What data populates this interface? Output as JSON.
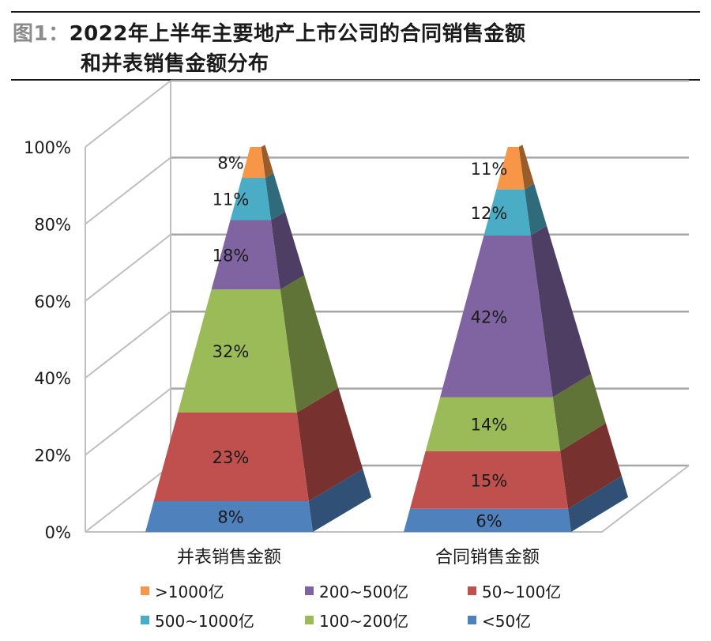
{
  "header": {
    "fig_label": "图1：",
    "title_line1": "2022年上半年主要地产上市公司的合同销售金额",
    "title_line2": "和并表销售金额分布"
  },
  "chart_data": {
    "type": "bar",
    "style": "3d-stacked-pyramid",
    "title": "2022年上半年主要地产上市公司的合同销售金额和并表销售金额分布",
    "categories": [
      "并表销售金额",
      "合同销售金额"
    ],
    "ylim": [
      0,
      100
    ],
    "yticks": [
      "0%",
      "20%",
      "40%",
      "60%",
      "80%",
      "100%"
    ],
    "grid": true,
    "legend_position": "bottom",
    "series": [
      {
        "name": "<50亿",
        "color": "#4f81bd",
        "values": [
          8,
          6
        ],
        "labels": [
          "8%",
          "6%"
        ]
      },
      {
        "name": "50~100亿",
        "color": "#c0504d",
        "values": [
          23,
          15
        ],
        "labels": [
          "23%",
          "15%"
        ]
      },
      {
        "name": "100~200亿",
        "color": "#9bbb59",
        "values": [
          32,
          14
        ],
        "labels": [
          "32%",
          "14%"
        ]
      },
      {
        "name": "200~500亿",
        "color": "#8064a2",
        "values": [
          18,
          42
        ],
        "labels": [
          "18%",
          "42%"
        ]
      },
      {
        "name": "500~1000亿",
        "color": "#4bacc6",
        "values": [
          11,
          12
        ],
        "labels": [
          "11%",
          "12%"
        ]
      },
      {
        "name": ">1000亿",
        "color": "#f79646",
        "values": [
          8,
          11
        ],
        "labels": [
          "8%",
          "11%"
        ]
      }
    ],
    "legend_order": [
      ">1000亿",
      "200~500亿",
      "50~100亿",
      "500~1000亿",
      "100~200亿",
      "<50亿"
    ]
  }
}
